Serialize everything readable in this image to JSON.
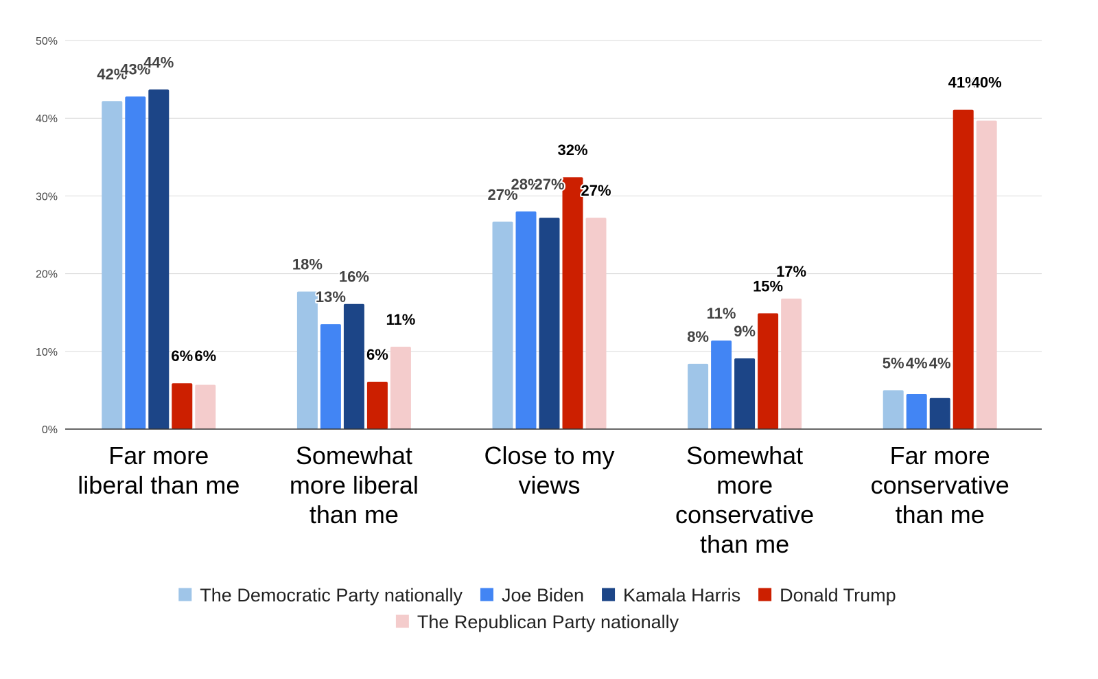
{
  "chart_data": {
    "type": "bar",
    "title": "",
    "xlabel": "",
    "ylabel": "",
    "ylim": [
      0,
      50
    ],
    "yticks": [
      "0%",
      "10%",
      "20%",
      "30%",
      "40%",
      "50%"
    ],
    "grid": true,
    "legend_position": "bottom",
    "categories": [
      [
        "Far more",
        "liberal than me"
      ],
      [
        "Somewhat",
        "more liberal",
        "than me"
      ],
      [
        "Close to my",
        "views"
      ],
      [
        "Somewhat",
        "more",
        "conservative",
        "than me"
      ],
      [
        "Far more",
        "conservative",
        "than me"
      ]
    ],
    "series": [
      {
        "name": "The Democratic Party nationally",
        "color": "#9fc5e8",
        "label_color": "#434343",
        "values": [
          42.2,
          17.7,
          26.7,
          8.4,
          5.0
        ],
        "labels": [
          "42%",
          "18%",
          "27%",
          "8%",
          "5%"
        ]
      },
      {
        "name": "Joe Biden",
        "color": "#4285f4",
        "label_color": "#434343",
        "values": [
          42.8,
          13.5,
          28.0,
          11.4,
          4.5
        ],
        "labels": [
          "43%",
          "13%",
          "28%",
          "11%",
          "4%"
        ]
      },
      {
        "name": "Kamala Harris",
        "color": "#1c4587",
        "label_color": "#434343",
        "values": [
          43.7,
          16.1,
          27.2,
          9.1,
          4.0
        ],
        "labels": [
          "44%",
          "16%",
          "27%",
          "9%",
          "4%"
        ]
      },
      {
        "name": "Donald Trump",
        "color": "#cc1f00",
        "label_color": "#000000",
        "values": [
          5.9,
          6.1,
          32.4,
          14.9,
          41.1
        ],
        "labels": [
          "6%",
          "6%",
          "32%",
          "15%",
          "41%"
        ]
      },
      {
        "name": "The Republican Party nationally",
        "color": "#f4cccc",
        "label_color": "#000000",
        "values": [
          5.7,
          10.6,
          27.2,
          16.8,
          39.7
        ],
        "labels": [
          "6%",
          "11%",
          "27%",
          "17%",
          "40%"
        ]
      }
    ]
  }
}
